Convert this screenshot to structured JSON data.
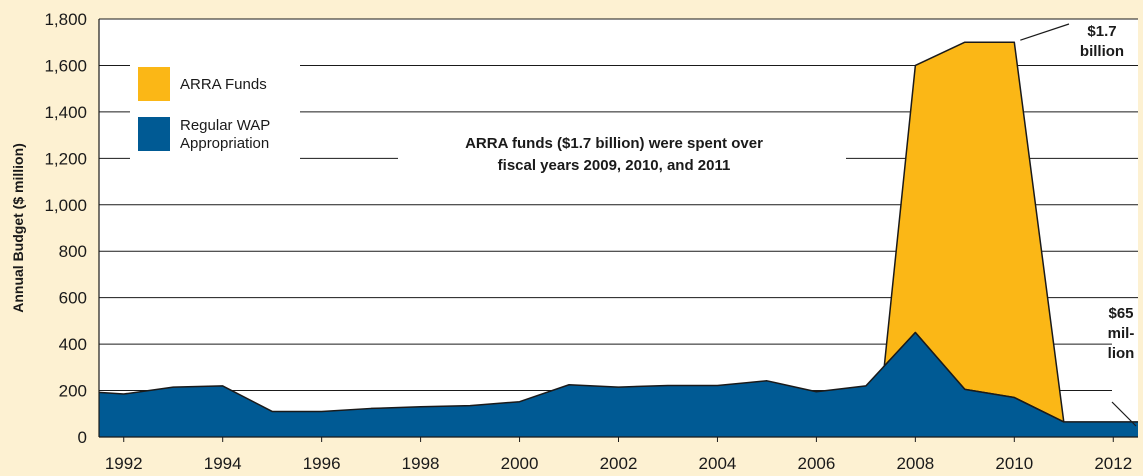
{
  "colors": {
    "background": "#fdf1d2",
    "plot_bg": "#ffffff",
    "arra": "#fbb716",
    "regular": "#005a94",
    "grid": "#1a1a1a"
  },
  "chart_data": {
    "type": "area",
    "stacked": true,
    "ylabel": "Annual Budget ($ million)",
    "xlim": [
      1991.5,
      2012.5
    ],
    "ylim": [
      0,
      1800
    ],
    "x_ticks": [
      1992,
      1994,
      1996,
      1998,
      2000,
      2002,
      2004,
      2006,
      2008,
      2010,
      2012
    ],
    "y_ticks": [
      0,
      200,
      400,
      600,
      800,
      1000,
      1200,
      1400,
      1600,
      1800
    ],
    "y_tick_labels": [
      "0",
      "200",
      "400",
      "600",
      "800",
      "1,000",
      "1,200",
      "1,400",
      "1,600",
      "1,800"
    ],
    "grid": true,
    "legend_position": "top-left",
    "series": [
      {
        "name": "Regular WAP Appropriation",
        "color": "#005a94",
        "points": [
          [
            1991.5,
            192
          ],
          [
            1992,
            185
          ],
          [
            1993,
            215
          ],
          [
            1994,
            220
          ],
          [
            1995,
            110
          ],
          [
            1996,
            110
          ],
          [
            1997,
            123
          ],
          [
            1998,
            130
          ],
          [
            1999,
            135
          ],
          [
            2000,
            152
          ],
          [
            2001,
            225
          ],
          [
            2002,
            215
          ],
          [
            2003,
            222
          ],
          [
            2004,
            222
          ],
          [
            2005,
            242
          ],
          [
            2006,
            195
          ],
          [
            2007,
            220
          ],
          [
            2008,
            450
          ],
          [
            2009,
            205
          ],
          [
            2010,
            170
          ],
          [
            2011,
            65
          ],
          [
            2012,
            65
          ],
          [
            2012.5,
            65
          ]
        ]
      },
      {
        "name": "ARRA Funds",
        "color": "#fbb716",
        "points": [
          [
            2007.35,
            260
          ],
          [
            2008,
            1600
          ],
          [
            2009,
            1700
          ],
          [
            2010,
            1700
          ],
          [
            2011,
            65
          ]
        ]
      }
    ],
    "legend": [
      {
        "label": "ARRA Funds",
        "color": "#fbb716"
      },
      {
        "label": "Regular WAP\nAppropriation",
        "color": "#005a94"
      }
    ],
    "annotations": {
      "note_line1": "ARRA funds ($1.7 billion) were spent over",
      "note_line2": "fiscal years 2009, 2010, and 2011",
      "peak_line1": "$1.7",
      "peak_line2": "billion",
      "end_line1": "$65",
      "end_line2": "mil-",
      "end_line3": "lion"
    }
  }
}
